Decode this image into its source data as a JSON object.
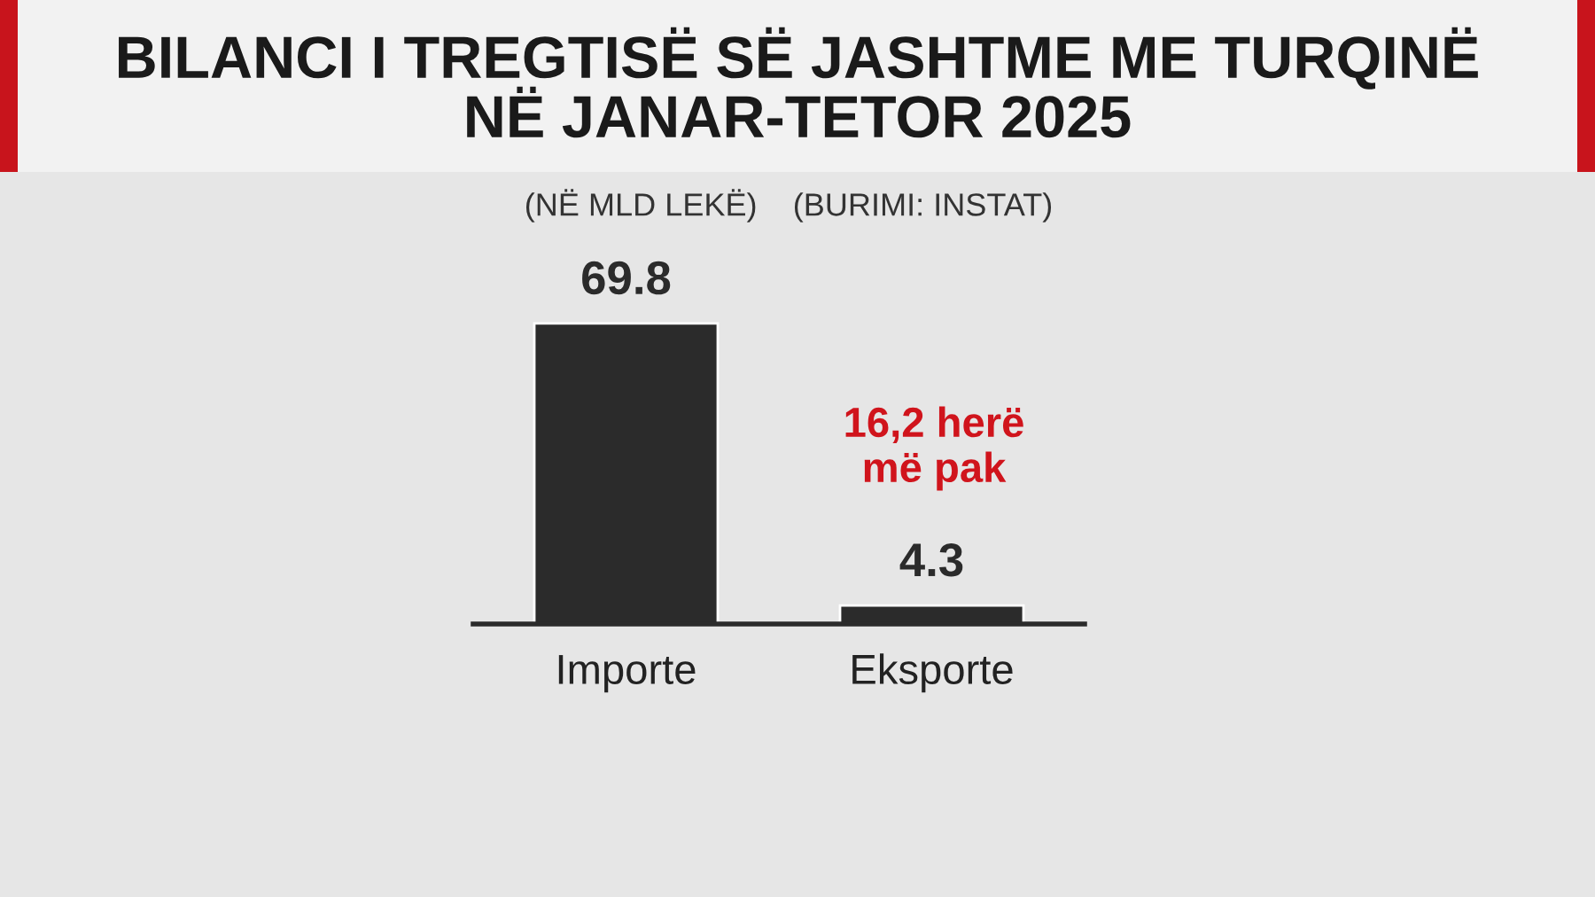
{
  "chart_data": {
    "type": "bar",
    "title": "BILANCI I TREGTISË SË JASHTME ME TURQINË\nNË JANAR-TETOR 2025",
    "subtitle": "(NË MLD LEKË)    (BURIMI: INSTAT)",
    "categories": [
      "Importe",
      "Eksporte"
    ],
    "values": [
      69.8,
      4.3
    ],
    "color": "#2b2b2b",
    "data_labels": true,
    "annotations": [
      "16,2 herë\nmë pak"
    ]
  }
}
